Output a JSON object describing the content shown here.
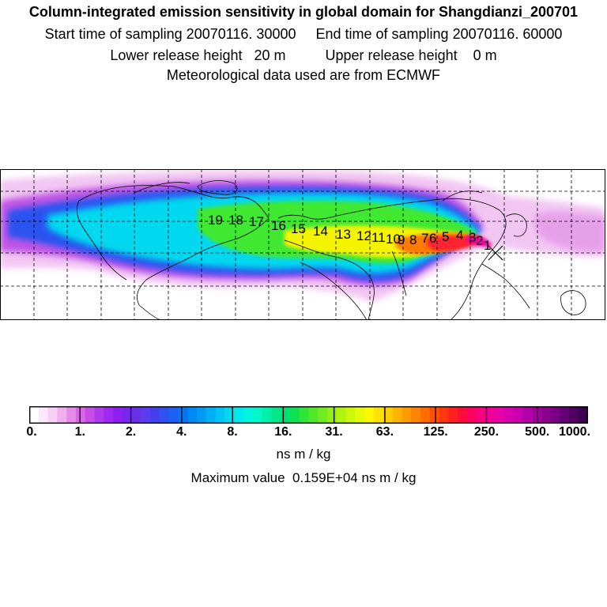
{
  "header": {
    "title": "Column-integrated emission sensitivity in global domain for Shangdianzi_200701",
    "sampling_line": "Start time of sampling 20070116. 30000     End time of sampling 20070116. 60000",
    "release_line": "Lower release height   20 m          Upper release height    0 m",
    "met_line": "Meteorological data used are from ECMWF"
  },
  "map": {
    "station_marker": "cross-icon",
    "day_labels": [
      "19",
      "18",
      "17",
      "16",
      "15",
      "14",
      "13",
      "12",
      "11",
      "10",
      "9",
      "8",
      "7",
      "6",
      "5",
      "4",
      "3",
      "2",
      "1"
    ]
  },
  "colorbar": {
    "tick_labels": [
      "0.",
      "1.",
      "2.",
      "4.",
      "8.",
      "16.",
      "31.",
      "63.",
      "125.",
      "250.",
      "500.",
      "1000."
    ],
    "colors": [
      "#ffffff",
      "#fbe8fb",
      "#f7d0f7",
      "#f0b0f0",
      "#e68ce8",
      "#d966e6",
      "#c84ce8",
      "#b238ee",
      "#a028f0",
      "#8c20f0",
      "#7628f0",
      "#6a30e8",
      "#5c3cf0",
      "#4440f0",
      "#3050f0",
      "#1c60f4",
      "#0874f4",
      "#0088f4",
      "#009cf4",
      "#00b0f4",
      "#00c4f4",
      "#00d8f0",
      "#00e8ec",
      "#00f4e0",
      "#00f8c8",
      "#00f0a8",
      "#00e888",
      "#00e070",
      "#10e050",
      "#30e438",
      "#50e828",
      "#70ec20",
      "#90f018",
      "#b0f410",
      "#ccf80c",
      "#e4fa08",
      "#fff600",
      "#ffe200",
      "#ffcc00",
      "#ffb400",
      "#ff9c00",
      "#ff8400",
      "#ff6c00",
      "#ff5000",
      "#ff3810",
      "#ff2020",
      "#ff0c3c",
      "#ff0060",
      "#f80080",
      "#f00098",
      "#e800a8",
      "#d800b0",
      "#c800b0",
      "#b400a8",
      "#a0009c",
      "#8c0090",
      "#780084",
      "#640074",
      "#500064",
      "#3c0050"
    ],
    "units": "ns m / kg",
    "max_value_text": "Maximum value  0.159E+04 ns m / kg"
  }
}
